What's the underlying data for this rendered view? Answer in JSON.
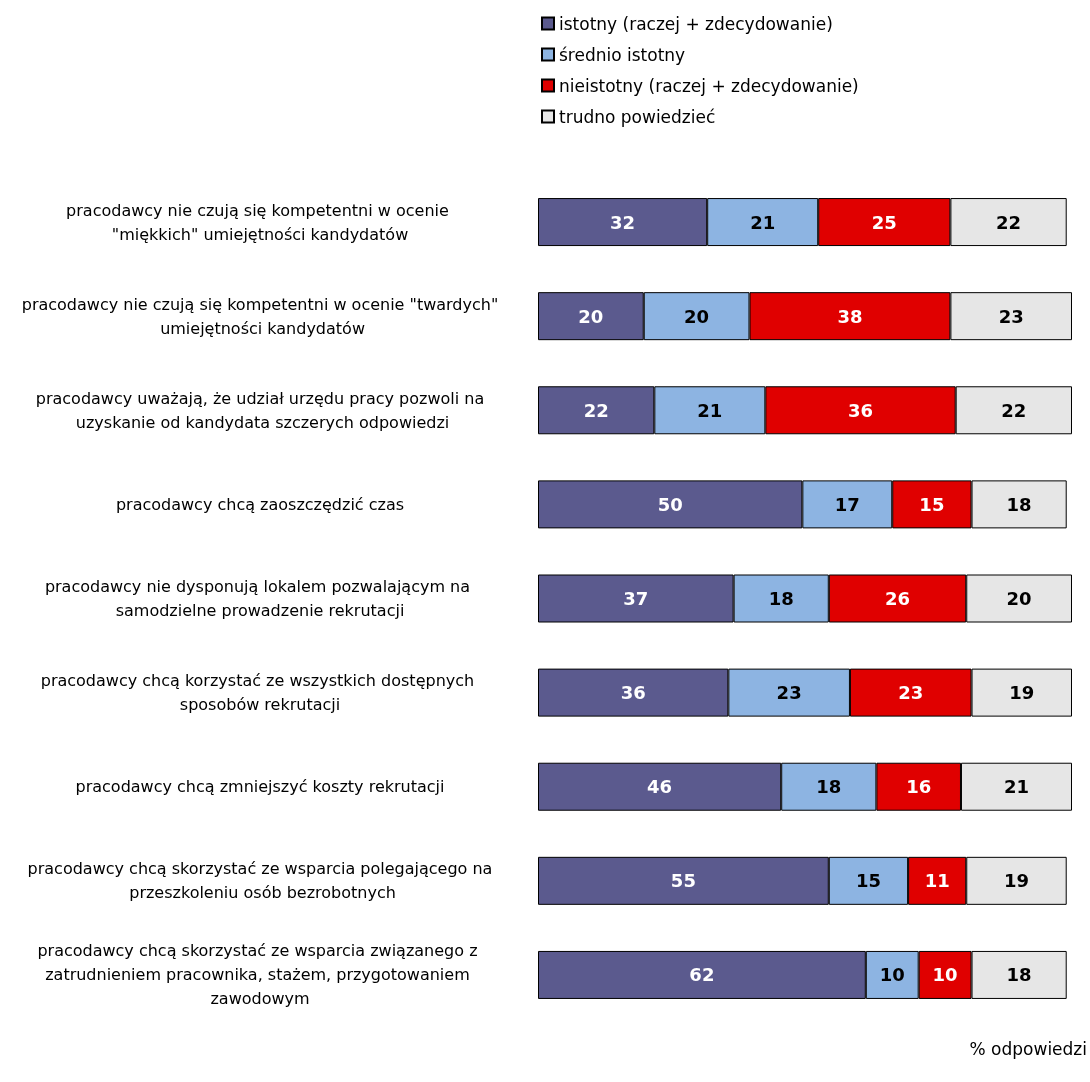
{
  "chart_data": {
    "type": "bar",
    "orientation": "horizontal",
    "stacked": true,
    "data_labels": true,
    "legend": "top left",
    "grid": false,
    "xlabel": "% odpowiedzi",
    "categories": [
      "pracodawcy nie czują się kompetentni w ocenie \"miękkich\" umiejętności kandydatów",
      "pracodawcy nie czują się kompetentni w ocenie \"twardych\" umiejętności kandydatów",
      "pracodawcy uważają, że udział urzędu pracy pozwoli na uzyskanie od kandydata szczerych odpowiedzi",
      "pracodawcy chcą zaoszczędzić czas",
      "pracodawcy nie dysponują lokalem pozwalającym na samodzielne prowadzenie rekrutacji",
      "pracodawcy chcą korzystać ze wszystkich dostępnych sposobów rekrutacji",
      "pracodawcy chcą zmniejszyć koszty rekrutacji",
      "pracodawcy chcą skorzystać ze wsparcia polegającego na przeszkoleniu osób bezrobotnych",
      "pracodawcy chcą skorzystać ze wsparcia związanego z zatrudnieniem pracownika, stażem, przygotowaniem zawodowym"
    ],
    "series": [
      {
        "name": "istotny (raczej + zdecydowanie)",
        "color": "#5b5a8e",
        "values": [
          32,
          20,
          22,
          50,
          37,
          36,
          46,
          55,
          62
        ]
      },
      {
        "name": "średnio istotny",
        "color": "#8db4e2",
        "values": [
          21,
          20,
          21,
          17,
          18,
          23,
          18,
          15,
          10
        ]
      },
      {
        "name": "nieistotny (raczej + zdecydowanie)",
        "color": "#e00000",
        "values": [
          25,
          38,
          36,
          15,
          26,
          23,
          16,
          11,
          10
        ]
      },
      {
        "name": "trudno powiedzieć",
        "color": "#e6e6e6",
        "values": [
          22,
          23,
          22,
          18,
          20,
          19,
          21,
          19,
          18
        ]
      }
    ]
  }
}
